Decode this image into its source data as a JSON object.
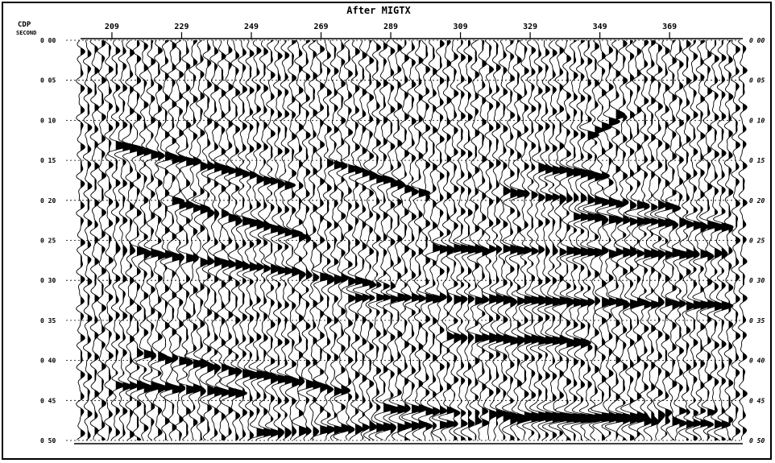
{
  "chart_data": {
    "type": "seismic-wiggle",
    "title": "After MIGTX",
    "x_axis": {
      "name": "CDP",
      "ticks": [
        209,
        229,
        249,
        269,
        289,
        309,
        329,
        349,
        369
      ],
      "range": [
        200,
        390
      ]
    },
    "y_axis": {
      "name": "SECOND",
      "ticks": [
        "0.00",
        "0.05",
        "0.10",
        "0.15",
        "0.20",
        "0.25",
        "0.30",
        "0.35",
        "0.40",
        "0.45",
        "0.50"
      ],
      "tick_labels_left": [
        "0 00",
        "0 05",
        "0 10",
        "0 15",
        "0 20",
        "0 25",
        "0 30",
        "0 35",
        "0 40",
        "0 45",
        "0 50"
      ],
      "tick_labels_right": [
        "0 00",
        "0 05",
        "0 10",
        "0 15",
        "0 20",
        "0 25",
        "0 30",
        "0 35",
        "0 40",
        "0 45",
        "0 50"
      ],
      "range": [
        0,
        0.5
      ],
      "inverted": true
    },
    "trace_count": 95,
    "grid": "dotted horizontal",
    "fill": "positive lobes filled black",
    "line_color": "#000000",
    "reflectors": [
      {
        "name": "R1",
        "t0": 0.13,
        "cdp_start": 209,
        "cdp_end": 260,
        "dip": 0.001,
        "amp": 0.9
      },
      {
        "name": "R2",
        "t0": 0.2,
        "cdp_start": 225,
        "cdp_end": 265,
        "dip": 0.0012,
        "amp": 0.8
      },
      {
        "name": "R3",
        "t0": 0.26,
        "cdp_start": 209,
        "cdp_end": 290,
        "dip": 0.0006,
        "amp": 0.8
      },
      {
        "name": "R4",
        "t0": 0.39,
        "cdp_start": 215,
        "cdp_end": 275,
        "dip": 0.0008,
        "amp": 0.8
      },
      {
        "name": "R5",
        "t0": 0.43,
        "cdp_start": 209,
        "cdp_end": 245,
        "dip": 0.0003,
        "amp": 0.9
      },
      {
        "name": "R6",
        "t0": 0.46,
        "cdp_start": 285,
        "cdp_end": 385,
        "dip": 0.0002,
        "amp": 0.9
      },
      {
        "name": "R7",
        "t0": 0.49,
        "cdp_start": 250,
        "cdp_end": 385,
        "dip": -0.0002,
        "amp": 0.8
      },
      {
        "name": "R8",
        "t0": 0.22,
        "cdp_start": 340,
        "cdp_end": 385,
        "dip": 0.0003,
        "amp": 0.9
      },
      {
        "name": "R9",
        "t0": 0.26,
        "cdp_start": 300,
        "cdp_end": 385,
        "dip": 0.0001,
        "amp": 0.8
      },
      {
        "name": "R10",
        "t0": 0.32,
        "cdp_start": 275,
        "cdp_end": 385,
        "dip": 0.0001,
        "amp": 0.8
      },
      {
        "name": "R11",
        "t0": 0.37,
        "cdp_start": 305,
        "cdp_end": 345,
        "dip": 0.0002,
        "amp": 0.9
      },
      {
        "name": "R12",
        "t0": 0.15,
        "cdp_start": 270,
        "cdp_end": 300,
        "dip": 0.0015,
        "amp": 0.7
      },
      {
        "name": "R13",
        "t0": 0.12,
        "cdp_start": 345,
        "cdp_end": 355,
        "dip": -0.003,
        "amp": 0.9
      },
      {
        "name": "R14",
        "t0": 0.19,
        "cdp_start": 320,
        "cdp_end": 370,
        "dip": 0.0004,
        "amp": 0.8
      },
      {
        "name": "R15",
        "t0": 0.16,
        "cdp_start": 330,
        "cdp_end": 350,
        "dip": 0.0005,
        "amp": 0.8
      }
    ]
  }
}
